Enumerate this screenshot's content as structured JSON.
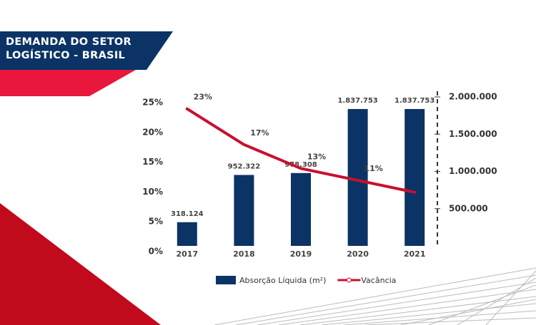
{
  "chart_data": {
    "type": "bar",
    "title": "DEMANDA DO SETOR LOGÍSTICO - BRASIL",
    "categories": [
      "2017",
      "2018",
      "2019",
      "2020",
      "2021"
    ],
    "ylim": [
      0,
      25
    ],
    "yticks": [
      {
        "value": 0,
        "label": "0%"
      },
      {
        "value": 5,
        "label": "5%"
      },
      {
        "value": 10,
        "label": "10%"
      },
      {
        "value": 15,
        "label": "15%"
      },
      {
        "value": 20,
        "label": "20%"
      },
      {
        "value": 25,
        "label": "25%"
      }
    ],
    "y2lim": [
      0,
      2000000
    ],
    "y2ticks": [
      {
        "value": 500000,
        "label": "500.000"
      },
      {
        "value": 1000000,
        "label": "1.000.000"
      },
      {
        "value": 1500000,
        "label": "1.500.000"
      },
      {
        "value": 2000000,
        "label": "2.000.000"
      }
    ],
    "series": [
      {
        "name": "Absorção Líquida (m²)",
        "type": "bar",
        "axis": "y2",
        "color": "#0b3366",
        "values": [
          318124,
          952322,
          978308,
          1837753,
          1837753
        ],
        "value_labels": [
          "318.124",
          "952.322",
          "978.308",
          "1.837.753",
          "1.837.753"
        ]
      },
      {
        "name": "Vacância",
        "type": "line",
        "color": "#c8102e",
        "values": [
          23,
          17,
          13,
          11,
          9
        ],
        "value_labels": [
          "23%",
          "17%",
          "13%",
          "11%",
          null
        ]
      }
    ]
  }
}
